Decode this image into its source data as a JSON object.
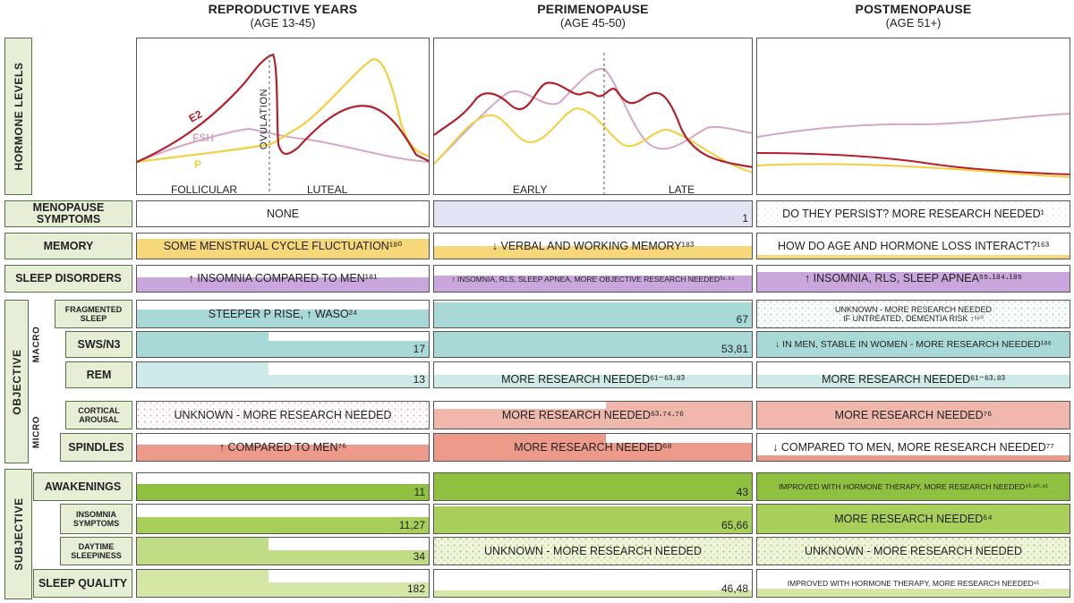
{
  "columns": [
    {
      "title": "REPRODUCTIVE YEARS",
      "subtitle": "(AGE 13-45)"
    },
    {
      "title": "PERIMENOPAUSE",
      "subtitle": "(AGE 45-50)"
    },
    {
      "title": "POSTMENOPAUSE",
      "subtitle": "(AGE 51+)"
    }
  ],
  "side_labels": {
    "hormone": "HORMONE LEVELS",
    "objective": "OBJECTIVE",
    "macro": "MACRO",
    "micro": "MICRO",
    "subjective": "SUBJECTIVE"
  },
  "hormone_chart": {
    "curves": {
      "e2": "E2",
      "fsh": "FSH",
      "p": "P"
    },
    "ovulation": "OVULATION",
    "phases": [
      "FOLLICULAR",
      "LUTEAL",
      "EARLY",
      "LATE"
    ],
    "colors": {
      "e2": "#b3202a",
      "fsh": "#d4a6c3",
      "p": "#f2cf3e"
    }
  },
  "rows": [
    {
      "label": "MENOPAUSE SYMPTOMS",
      "cells": [
        {
          "text": "NONE",
          "ref": ""
        },
        {
          "text": "",
          "ref": "1"
        },
        {
          "text": "DO THEY PERSIST? MORE RESEARCH NEEDED¹",
          "ref": ""
        }
      ]
    },
    {
      "label": "MEMORY",
      "cells": [
        {
          "text": "SOME MENSTRUAL CYCLE FLUCTUATION¹⁸⁰",
          "ref": ""
        },
        {
          "text": "↓ VERBAL AND WORKING MEMORY¹⁸³",
          "ref": ""
        },
        {
          "text": "HOW DO AGE AND HORMONE LOSS INTERACT?¹⁶³",
          "ref": ""
        }
      ]
    },
    {
      "label": "SLEEP DISORDERS",
      "cells": [
        {
          "text": "↑ INSOMNIA COMPARED TO MEN¹⁸¹",
          "ref": ""
        },
        {
          "text": "↑ INSOMNIA, RLS, SLEEP APNEA, MORE OBJECTIVE RESEARCH NEEDED³⁸·⁵⁴",
          "ref": ""
        },
        {
          "text": "↑ INSOMNIA, RLS, SLEEP APNEA⁵⁵·¹⁸⁴·¹⁸⁵",
          "ref": ""
        }
      ]
    },
    {
      "label": "FRAGMENTED SLEEP",
      "cells": [
        {
          "text": "STEEPER P RISE, ↑ WASO²⁴",
          "ref": ""
        },
        {
          "text": "",
          "ref": "67"
        },
        {
          "text": "UNKNOWN - MORE RESEARCH NEEDED\nIF UNTREATED, DEMENTIA RISK ↑¹⁶⁰",
          "ref": ""
        }
      ]
    },
    {
      "label": "SWS/N3",
      "cells": [
        {
          "text": "",
          "ref": "17"
        },
        {
          "text": "",
          "ref": "53,81"
        },
        {
          "text": "↓ IN MEN, STABLE IN WOMEN - MORE RESEARCH NEEDED¹⁸⁶",
          "ref": ""
        }
      ]
    },
    {
      "label": "REM",
      "cells": [
        {
          "text": "",
          "ref": "13"
        },
        {
          "text": "MORE RESEARCH NEEDED⁶¹⁻⁶³·⁸³",
          "ref": ""
        },
        {
          "text": "MORE RESEARCH NEEDED⁶¹⁻⁶³·⁸³",
          "ref": ""
        }
      ]
    },
    {
      "label": "CORTICAL AROUSAL",
      "cells": [
        {
          "text": "UNKNOWN - MORE RESEARCH NEEDED",
          "ref": ""
        },
        {
          "text": "MORE RESEARCH NEEDED⁶³·⁷⁴·⁷⁶",
          "ref": ""
        },
        {
          "text": "MORE RESEARCH NEEDED⁷⁶",
          "ref": ""
        }
      ]
    },
    {
      "label": "SPINDLES",
      "cells": [
        {
          "text": "↑ COMPARED TO MEN⁷⁶",
          "ref": ""
        },
        {
          "text": "MORE RESEARCH NEEDED⁶⁸",
          "ref": ""
        },
        {
          "text": "↓ COMPARED TO MEN, MORE RESEARCH NEEDED⁷⁷",
          "ref": ""
        }
      ]
    },
    {
      "label": "AWAKENINGS",
      "cells": [
        {
          "text": "",
          "ref": "11"
        },
        {
          "text": "",
          "ref": "43"
        },
        {
          "text": "IMPROVED WITH HORMONE THERAPY, MORE RESEARCH NEEDED⁴³·⁸⁰·⁹¹",
          "ref": ""
        }
      ]
    },
    {
      "label": "INSOMNIA SYMPTOMS",
      "cells": [
        {
          "text": "",
          "ref": "11,27"
        },
        {
          "text": "",
          "ref": "65,66"
        },
        {
          "text": "MORE RESEARCH NEEDED⁶⁴",
          "ref": ""
        }
      ]
    },
    {
      "label": "DAYTIME SLEEPINESS",
      "cells": [
        {
          "text": "",
          "ref": "34"
        },
        {
          "text": "UNKNOWN - MORE RESEARCH NEEDED",
          "ref": ""
        },
        {
          "text": "UNKNOWN - MORE RESEARCH NEEDED",
          "ref": ""
        }
      ]
    },
    {
      "label": "SLEEP QUALITY",
      "cells": [
        {
          "text": "",
          "ref": "182"
        },
        {
          "text": "",
          "ref": "46,48"
        },
        {
          "text": "IMPROVED WITH HORMONE THERAPY, MORE RESEARCH NEEDED⁸¹",
          "ref": ""
        }
      ]
    }
  ]
}
